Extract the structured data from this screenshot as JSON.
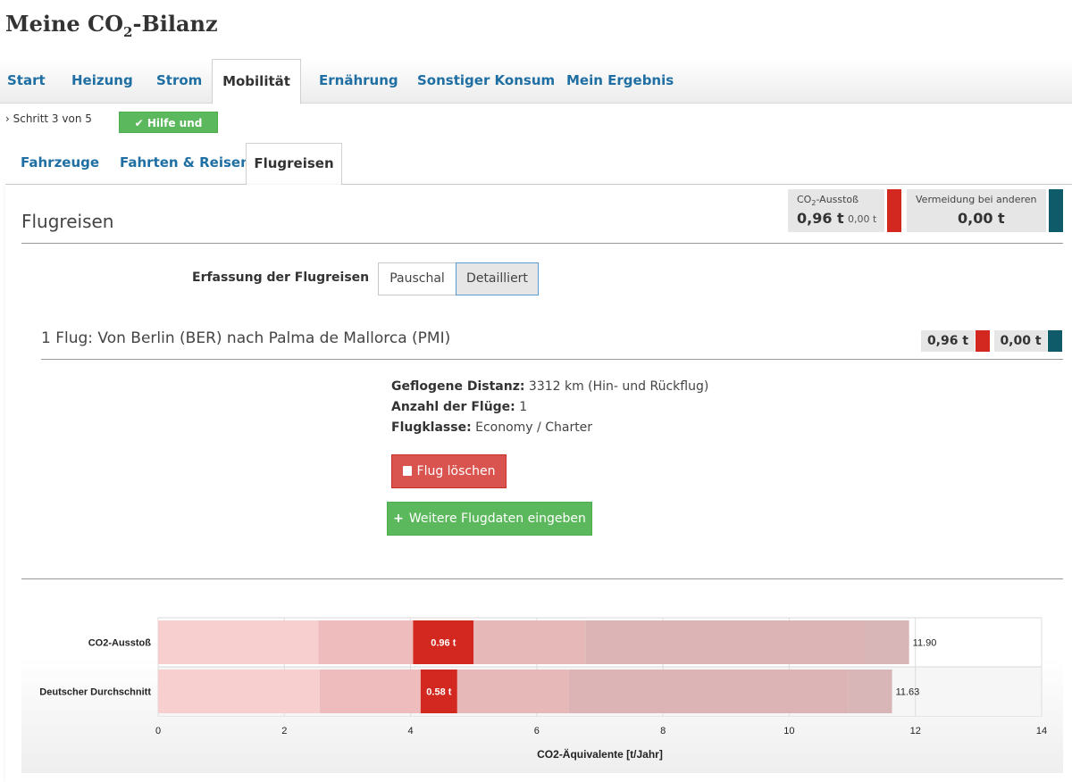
{
  "header": {
    "title_prefix": "Meine CO",
    "title_sub": "2",
    "title_suffix": "-Bilanz"
  },
  "main_tabs": [
    {
      "label": "Start"
    },
    {
      "label": "Heizung"
    },
    {
      "label": "Strom"
    },
    {
      "label": "Mobilität",
      "active": true
    },
    {
      "label": "Ernährung"
    },
    {
      "label": "Sonstiger Konsum"
    },
    {
      "label": "Mein Ergebnis"
    }
  ],
  "step": {
    "text": "› Schritt 3 von 5",
    "help_label": "Hilfe und Infos"
  },
  "sub_tabs": [
    {
      "label": "Fahrzeuge"
    },
    {
      "label": "Fahrten & Reisen"
    },
    {
      "label": "Flugreisen",
      "active": true
    }
  ],
  "section": {
    "title": "Flugreisen"
  },
  "stats": {
    "emission_label_prefix": "CO",
    "emission_label_sub": "2",
    "emission_label_suffix": "-Ausstoß",
    "emission_value": "0,96 t",
    "emission_sub": "0,00 t",
    "avoidance_label": "Vermeidung bei anderen",
    "avoidance_value": "0,00 t",
    "colors": {
      "emission": "#d2281f",
      "avoidance": "#0f5b6a"
    }
  },
  "capture": {
    "label": "Erfassung der Flugreisen",
    "options": [
      "Pauschal",
      "Detailliert"
    ],
    "selected": "Detailliert"
  },
  "flight": {
    "title": "1 Flug: Von Berlin (BER) nach Palma de Mallorca (PMI)",
    "emission": "0,96 t",
    "avoidance": "0,00 t",
    "distance_label": "Geflogene Distanz:",
    "distance_value": "3312 km (Hin- und Rückflug)",
    "count_label": "Anzahl der Flüge:",
    "count_value": "1",
    "class_label": "Flugklasse:",
    "class_value": "Economy / Charter"
  },
  "actions": {
    "delete_label": "Flug löschen",
    "add_label": "Weitere Flugdaten eingeben"
  },
  "chart_data": {
    "type": "bar",
    "orientation": "horizontal-stacked",
    "xlabel": "CO2-Äquivalente [t/Jahr]",
    "xlim": [
      0,
      14
    ],
    "xticks": [
      0,
      2,
      4,
      6,
      8,
      10,
      12,
      14
    ],
    "grid": true,
    "rows": [
      {
        "label": "CO2-Ausstoß",
        "total": 11.9,
        "total_label": "11.90",
        "highlight_value": 0.96,
        "highlight_label": "0.96 t",
        "segments": [
          2.54,
          1.5,
          0.96,
          1.77,
          4.42,
          0.71
        ]
      },
      {
        "label": "Deutscher Durchschnitt",
        "total": 11.63,
        "total_label": "11.63",
        "highlight_value": 0.58,
        "highlight_label": "0.58 t",
        "segments": [
          2.56,
          1.6,
          0.58,
          1.77,
          4.42,
          0.7
        ]
      }
    ],
    "segment_colors": [
      "#f7cfcf",
      "#eebcbc",
      "#d2281f",
      "#e6b8b8",
      "#dcb4b6",
      "#d8b6b8"
    ]
  }
}
